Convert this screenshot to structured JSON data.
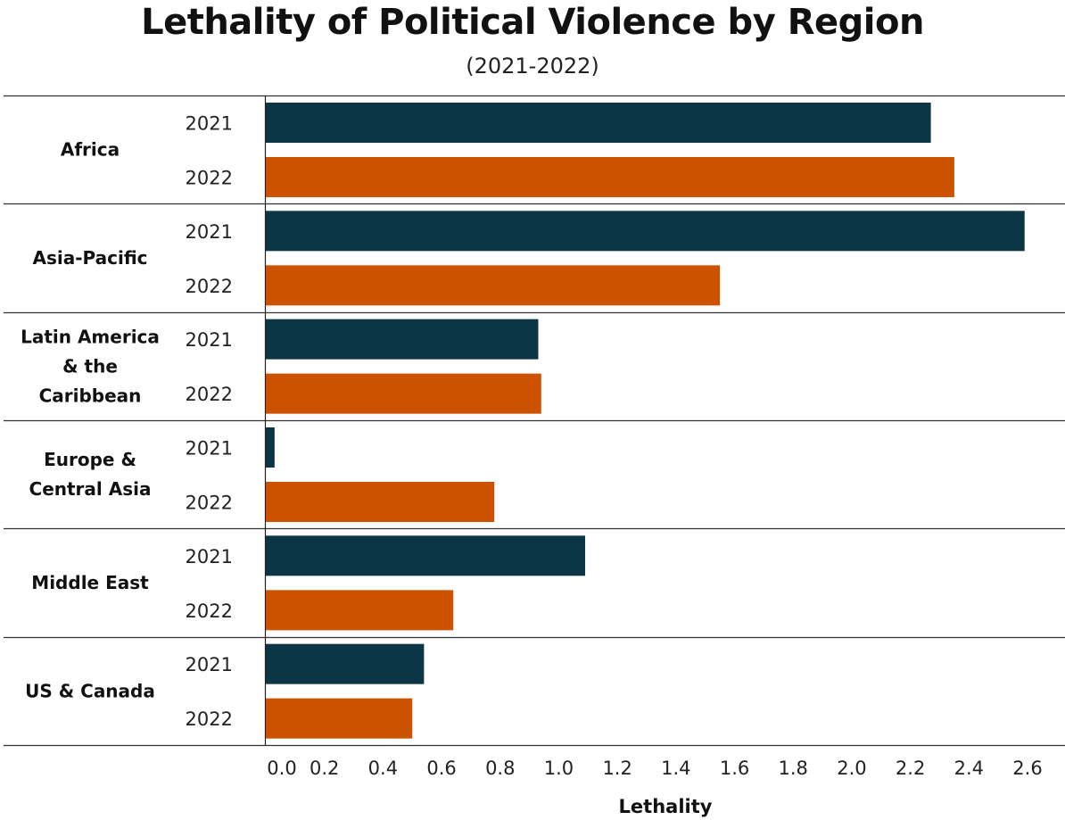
{
  "chart_data": {
    "type": "bar",
    "orientation": "horizontal",
    "title": "Lethality of Political Violence by Region",
    "subtitle": "(2021-2022)",
    "xlabel": "Lethality",
    "ylabel": "",
    "xlim": [
      0,
      2.6
    ],
    "x_ticks": [
      "0.0",
      "0.2",
      "0.4",
      "0.6",
      "0.8",
      "1.0",
      "1.2",
      "1.4",
      "1.6",
      "1.8",
      "2.0",
      "2.2",
      "2.4",
      "2.6"
    ],
    "grid": false,
    "categories": [
      {
        "name": "Africa",
        "lines": [
          "Africa"
        ]
      },
      {
        "name": "Asia-Pacific",
        "lines": [
          "Asia-Pacific"
        ]
      },
      {
        "name": "Latin America & the Caribbean",
        "lines": [
          "Latin America",
          "& the",
          "Caribbean"
        ]
      },
      {
        "name": "Europe & Central Asia",
        "lines": [
          "Europe &",
          "Central Asia"
        ]
      },
      {
        "name": "Middle East",
        "lines": [
          "Middle East"
        ]
      },
      {
        "name": "US & Canada",
        "lines": [
          "US & Canada"
        ]
      }
    ],
    "series": [
      {
        "name": "2021",
        "color": "#0c3545",
        "values": [
          2.27,
          2.59,
          0.93,
          0.03,
          1.09,
          0.54
        ]
      },
      {
        "name": "2022",
        "color": "#cc5200",
        "values": [
          2.35,
          1.55,
          0.94,
          0.78,
          0.64,
          0.5
        ]
      }
    ]
  }
}
